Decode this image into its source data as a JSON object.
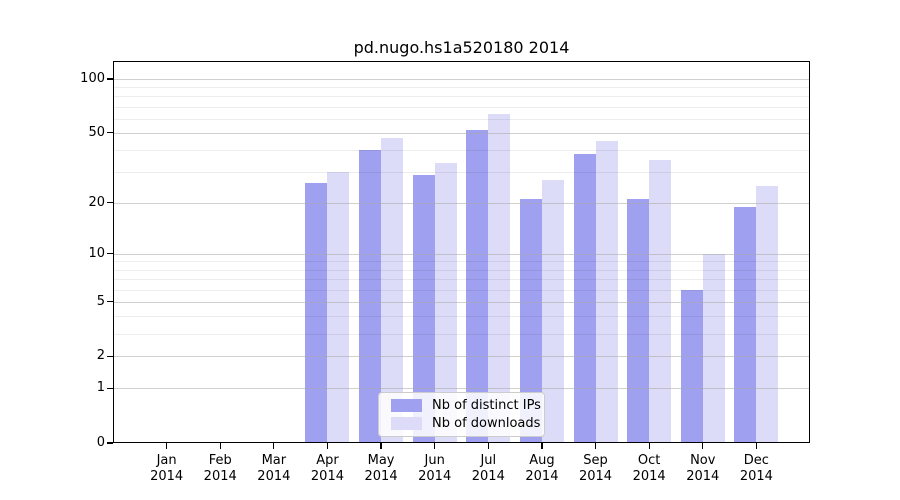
{
  "title": "pd.nugo.hs1a520180 2014",
  "chart_data": {
    "type": "bar",
    "title": "pd.nugo.hs1a520180 2014",
    "categories": [
      "Jan 2014",
      "Feb 2014",
      "Mar 2014",
      "Apr 2014",
      "May 2014",
      "Jun 2014",
      "Jul 2014",
      "Aug 2014",
      "Sep 2014",
      "Oct 2014",
      "Nov 2014",
      "Dec 2014"
    ],
    "series": [
      {
        "name": "Nb of distinct IPs",
        "key": "distinct-ips",
        "color": "#a0a0f0",
        "values": [
          0,
          0,
          0,
          26,
          40,
          29,
          52,
          21,
          38,
          21,
          6,
          19
        ]
      },
      {
        "name": "Nb of downloads",
        "key": "downloads",
        "color": "#dcdcf8",
        "values": [
          0,
          0,
          0,
          30,
          47,
          34,
          64,
          27,
          45,
          35,
          10,
          25
        ]
      }
    ],
    "yscale": "log1p",
    "yticks": [
      0,
      1,
      2,
      5,
      10,
      20,
      50,
      100
    ],
    "minor_yticks": [
      3,
      4,
      6,
      7,
      8,
      9,
      30,
      40,
      60,
      70,
      80,
      90
    ],
    "ylim": [
      0,
      126
    ],
    "grid": true,
    "legend_position": "bottom-center"
  },
  "colors": {
    "grid_major": "rgba(170,170,170,0.55)",
    "grid_minor": "rgba(0,0,0,0.07)",
    "axis": "#000000"
  },
  "legend": {
    "items": [
      {
        "label": "Nb of distinct IPs"
      },
      {
        "label": "Nb of downloads"
      }
    ]
  }
}
